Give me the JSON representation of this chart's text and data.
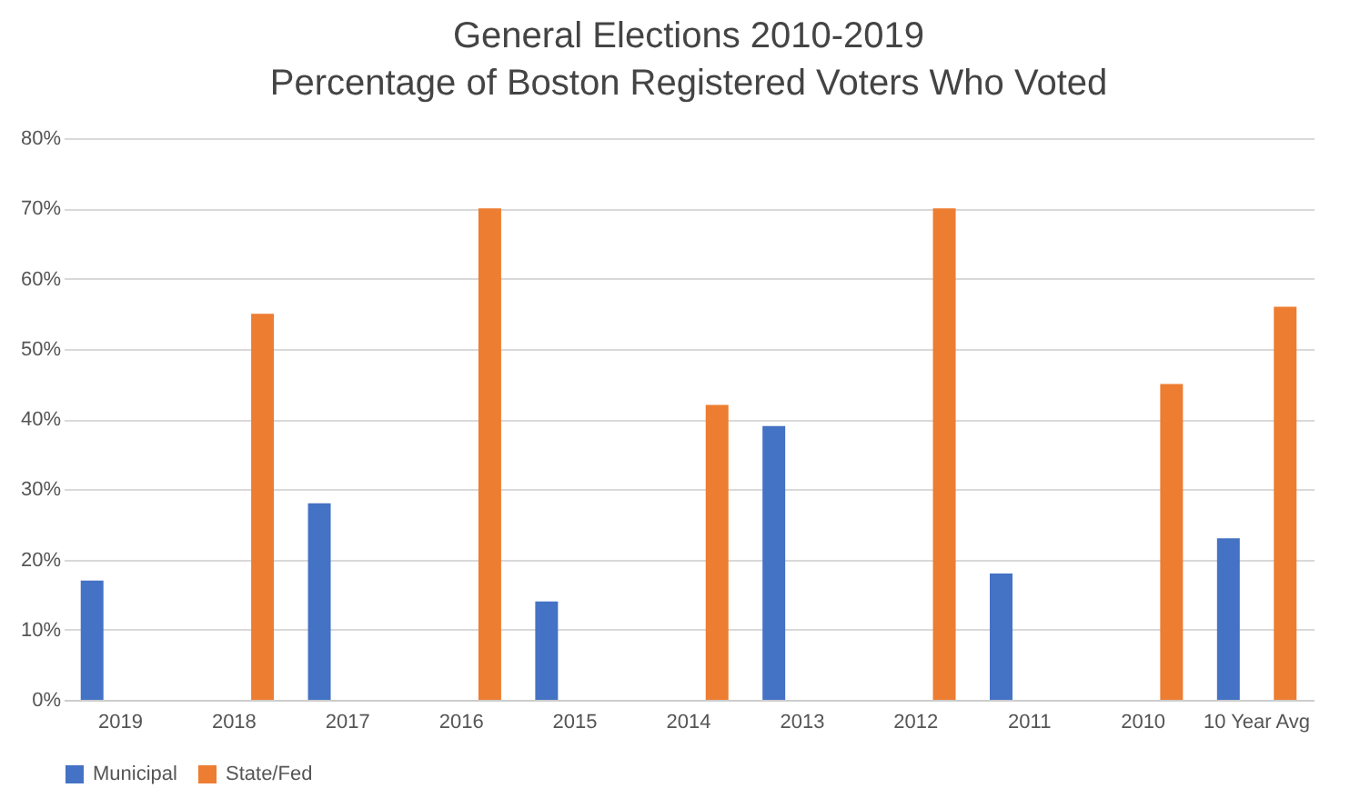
{
  "chart_data": {
    "type": "bar",
    "title": "General Elections 2010-2019",
    "subtitle": "Percentage of Boston Registered Voters Who Voted",
    "categories": [
      "2019",
      "2018",
      "2017",
      "2016",
      "2015",
      "2014",
      "2013",
      "2012",
      "2011",
      "2010",
      "10 Year Avg"
    ],
    "series": [
      {
        "name": "Municipal",
        "color": "#4472c4",
        "values": [
          17,
          null,
          28,
          null,
          14,
          null,
          39,
          null,
          18,
          null,
          23
        ]
      },
      {
        "name": "State/Fed",
        "color": "#ed7d31",
        "values": [
          null,
          55,
          null,
          70,
          null,
          42,
          null,
          70,
          null,
          45,
          56
        ]
      }
    ],
    "ylim": [
      0,
      80
    ],
    "yticks": [
      {
        "value": 0,
        "label": "0%"
      },
      {
        "value": 10,
        "label": "10%"
      },
      {
        "value": 20,
        "label": "20%"
      },
      {
        "value": 30,
        "label": "30%"
      },
      {
        "value": 40,
        "label": "40%"
      },
      {
        "value": 50,
        "label": "50%"
      },
      {
        "value": 60,
        "label": "60%"
      },
      {
        "value": 70,
        "label": "70%"
      },
      {
        "value": 80,
        "label": "80%"
      }
    ],
    "grid": "y",
    "legend": "bottom"
  }
}
